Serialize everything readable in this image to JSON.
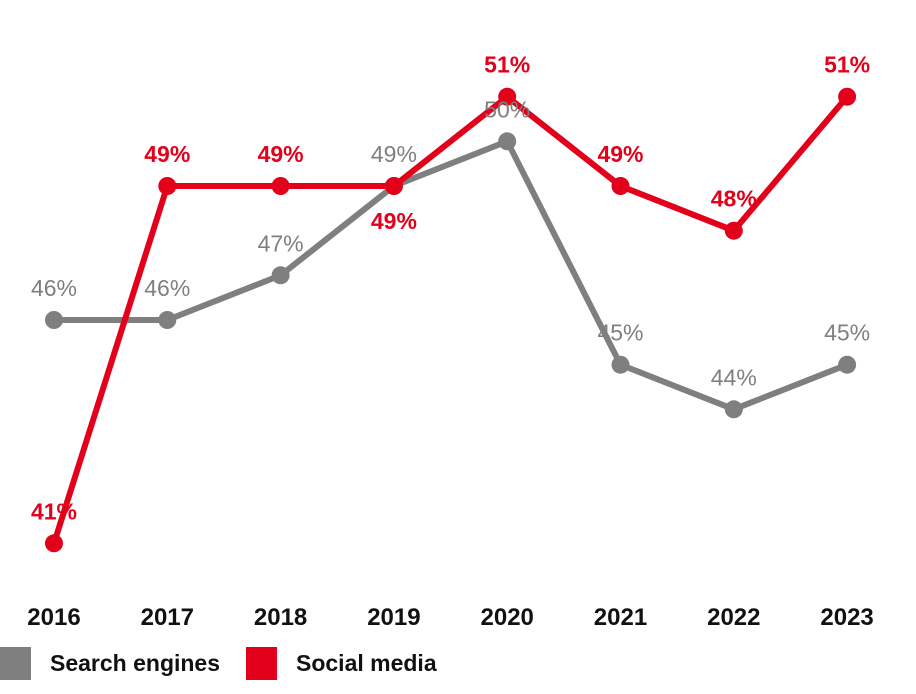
{
  "chart_data": {
    "type": "line",
    "title": "",
    "xlabel": "",
    "ylabel": "",
    "ylim": [
      40,
      52
    ],
    "grid": false,
    "legend_position": "bottom-left",
    "categories": [
      "2016",
      "2017",
      "2018",
      "2019",
      "2020",
      "2021",
      "2022",
      "2023"
    ],
    "series": [
      {
        "name": "Search engines",
        "color": "#7f7f7f",
        "values": [
          46,
          46,
          47,
          49,
          50,
          45,
          44,
          45
        ],
        "labels": [
          "46%",
          "46%",
          "47%",
          "49%",
          "50%",
          "45%",
          "44%",
          "45%"
        ],
        "label_positions": [
          "above",
          "above",
          "above",
          "above",
          "above",
          "above",
          "above",
          "above"
        ]
      },
      {
        "name": "Social media",
        "color": "#e3001b",
        "values": [
          41,
          49,
          49,
          49,
          51,
          49,
          48,
          51
        ],
        "labels": [
          "41%",
          "49%",
          "49%",
          "49%",
          "51%",
          "49%",
          "48%",
          "51%"
        ],
        "label_positions": [
          "above",
          "above",
          "above",
          "below",
          "above",
          "above",
          "above",
          "above"
        ]
      }
    ]
  }
}
